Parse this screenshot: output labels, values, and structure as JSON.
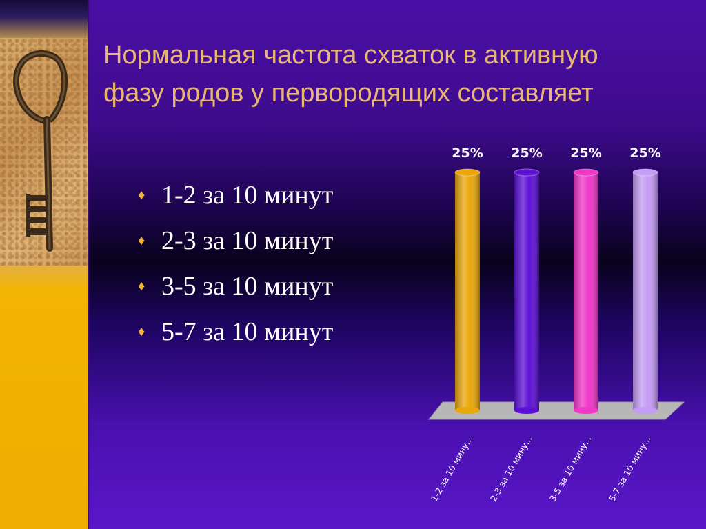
{
  "title": "Нормальная частота схваток в активную фазу родов у первородящих составляет",
  "bullet_icon": "diamond-bullet-icon",
  "bullets": [
    "1-2 за 10 минут",
    "2-3 за 10 минут",
    "3-5 за 10 минут",
    "5-7 за 10 минут"
  ],
  "colors": {
    "title": "#e9b774",
    "bullet_marker": "#f5b335",
    "bar1": "#eaa70a",
    "bar2": "#5d10d6",
    "bar3": "#f037c8",
    "bar4": "#c59cf5",
    "floor": "#b7b7b7"
  },
  "chart_data": {
    "type": "bar",
    "style": "3d-cylinder",
    "categories": [
      "1-2 за 10 мину...",
      "2-3 за 10 мину...",
      "3-5 за 10 мину...",
      "5-7 за 10 мину..."
    ],
    "series": [
      {
        "values": [
          25,
          25,
          25,
          25
        ]
      }
    ],
    "data_labels": [
      "25%",
      "25%",
      "25%",
      "25%"
    ],
    "unit": "%",
    "ylim": [
      0,
      25
    ],
    "grid": false,
    "legend": "none"
  }
}
